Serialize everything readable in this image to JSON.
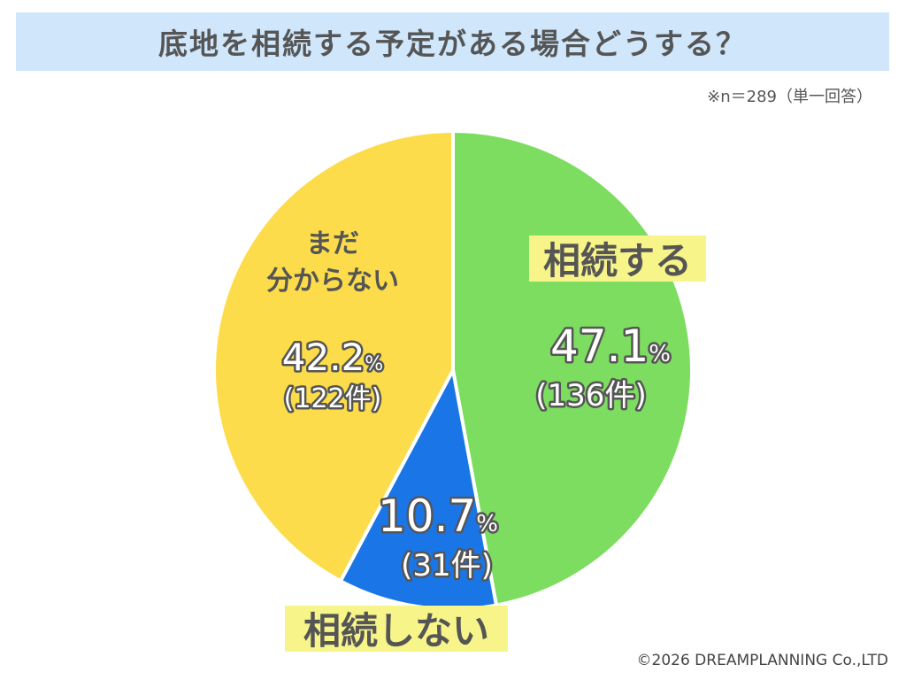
{
  "header": {
    "title": "底地を相続する予定がある場合どうする？",
    "note": "※n＝289（単一回答）"
  },
  "footer": {
    "credit": "©2026 DREAMPLANNING Co.,LTD"
  },
  "colors": {
    "title_bg": "#cfe6fb",
    "green": "#7ddd60",
    "blue": "#1a76e6",
    "yellow": "#fcdc4a",
    "highlight": "#f7f48a",
    "text_dark": "#555555"
  },
  "chart_data": {
    "type": "pie",
    "title": "底地を相続する予定がある場合どうする？",
    "n": 289,
    "slices": [
      {
        "label": "相続する",
        "percent": 47.1,
        "count_label": "(136件)",
        "count": 136,
        "color": "#7ddd60"
      },
      {
        "label": "相続しない",
        "percent": 10.7,
        "count_label": "(31件)",
        "count": 31,
        "color": "#1a76e6"
      },
      {
        "label": "まだ 分からない",
        "label_lines": [
          "まだ",
          "分からない"
        ],
        "percent": 42.2,
        "count_label": "(122件)",
        "count": 122,
        "color": "#fcdc4a"
      }
    ]
  }
}
